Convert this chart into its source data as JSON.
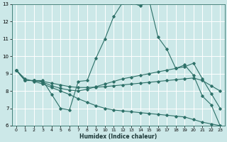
{
  "bg_color": "#cce8e8",
  "line_color": "#2d7068",
  "grid_color": "#ffffff",
  "xlabel": "Humidex (Indice chaleur)",
  "xlim": [
    -0.5,
    23.5
  ],
  "ylim": [
    6,
    13
  ],
  "xticks": [
    0,
    1,
    2,
    3,
    4,
    5,
    6,
    7,
    8,
    9,
    10,
    11,
    12,
    13,
    14,
    15,
    16,
    17,
    18,
    19,
    20,
    21,
    22,
    23
  ],
  "yticks": [
    6,
    7,
    8,
    9,
    10,
    11,
    12,
    13
  ],
  "line1_x": [
    0,
    1,
    2,
    3,
    4,
    5,
    6,
    7,
    8,
    9,
    10,
    11,
    12,
    13,
    14,
    15,
    16,
    17,
    18,
    19,
    20,
    21,
    22,
    23
  ],
  "line1_y": [
    9.2,
    8.6,
    8.6,
    8.6,
    7.8,
    7.0,
    6.9,
    8.55,
    8.6,
    9.9,
    11.0,
    12.3,
    13.1,
    13.1,
    12.9,
    13.2,
    11.1,
    10.4,
    9.3,
    9.5,
    8.9,
    7.7,
    7.2,
    6.0
  ],
  "line2_x": [
    0,
    1,
    2,
    3,
    4,
    5,
    6,
    7,
    8,
    9,
    10,
    11,
    12,
    13,
    14,
    15,
    16,
    17,
    18,
    19,
    20,
    21,
    22,
    23
  ],
  "line2_y": [
    9.2,
    8.6,
    8.6,
    8.5,
    8.3,
    8.15,
    8.05,
    8.0,
    8.1,
    8.25,
    8.4,
    8.55,
    8.7,
    8.8,
    8.9,
    9.0,
    9.1,
    9.2,
    9.3,
    9.4,
    9.6,
    8.7,
    7.85,
    7.0
  ],
  "line3_x": [
    0,
    1,
    2,
    3,
    4,
    5,
    6,
    7,
    8,
    9,
    10,
    11,
    12,
    13,
    14,
    15,
    16,
    17,
    18,
    19,
    20,
    21,
    22,
    23
  ],
  "line3_y": [
    9.2,
    8.6,
    8.6,
    8.55,
    8.45,
    8.35,
    8.25,
    8.2,
    8.2,
    8.22,
    8.25,
    8.3,
    8.35,
    8.4,
    8.45,
    8.5,
    8.55,
    8.6,
    8.65,
    8.7,
    8.75,
    8.6,
    8.3,
    8.0
  ],
  "line4_x": [
    0,
    1,
    2,
    3,
    4,
    5,
    6,
    7,
    8,
    9,
    10,
    11,
    12,
    13,
    14,
    15,
    16,
    17,
    18,
    19,
    20,
    21,
    22,
    23
  ],
  "line4_y": [
    9.2,
    8.7,
    8.55,
    8.4,
    8.2,
    8.0,
    7.8,
    7.55,
    7.35,
    7.15,
    7.0,
    6.9,
    6.85,
    6.8,
    6.75,
    6.7,
    6.65,
    6.6,
    6.55,
    6.5,
    6.35,
    6.2,
    6.1,
    6.0
  ]
}
